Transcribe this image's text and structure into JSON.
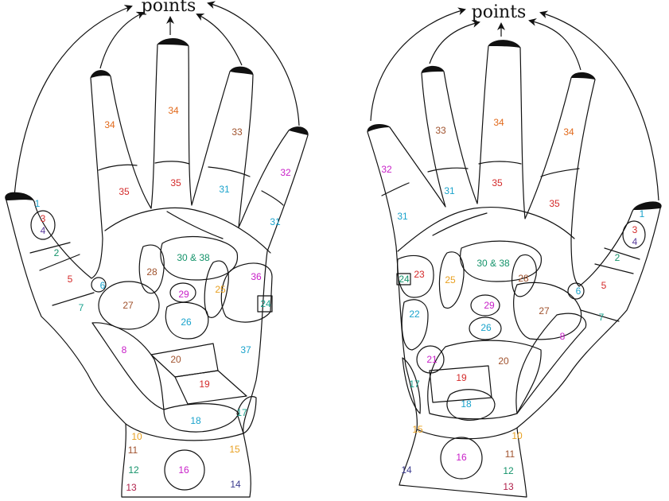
{
  "title_left": "points",
  "title_right": "points",
  "colors": {
    "orange": "#e26a1c",
    "red": "#d42a2a",
    "blue": "#1aa3cc",
    "magenta": "#c81fc8",
    "green": "#14936a",
    "purple": "#5a3b9c",
    "brown": "#a0522d",
    "navy": "#3b3b8f",
    "darkred": "#b0204a",
    "gold": "#e8a020",
    "teal": "#1aa38f"
  },
  "left_hand": [
    {
      "text": "1",
      "color": "blue"
    },
    {
      "text": "3",
      "color": "red"
    },
    {
      "text": "4",
      "color": "purple"
    },
    {
      "text": "2",
      "color": "green"
    },
    {
      "text": "5",
      "color": "red"
    },
    {
      "text": "6",
      "color": "blue"
    },
    {
      "text": "7",
      "color": "teal"
    },
    {
      "text": "8",
      "color": "magenta"
    },
    {
      "text": "34",
      "color": "orange"
    },
    {
      "text": "34",
      "color": "orange"
    },
    {
      "text": "33",
      "color": "brown"
    },
    {
      "text": "32",
      "color": "magenta"
    },
    {
      "text": "35",
      "color": "red"
    },
    {
      "text": "35",
      "color": "red"
    },
    {
      "text": "31",
      "color": "blue"
    },
    {
      "text": "31",
      "color": "blue"
    },
    {
      "text": "30 & 38",
      "color": "green"
    },
    {
      "text": "28",
      "color": "brown"
    },
    {
      "text": "29",
      "color": "magenta"
    },
    {
      "text": "25",
      "color": "gold"
    },
    {
      "text": "36",
      "color": "magenta"
    },
    {
      "text": "24",
      "color": "teal"
    },
    {
      "text": "27",
      "color": "brown"
    },
    {
      "text": "26",
      "color": "blue"
    },
    {
      "text": "37",
      "color": "blue"
    },
    {
      "text": "20",
      "color": "brown"
    },
    {
      "text": "19",
      "color": "red"
    },
    {
      "text": "18",
      "color": "blue"
    },
    {
      "text": "17",
      "color": "teal"
    },
    {
      "text": "10",
      "color": "gold"
    },
    {
      "text": "11",
      "color": "brown"
    },
    {
      "text": "12",
      "color": "green"
    },
    {
      "text": "13",
      "color": "darkred"
    },
    {
      "text": "15",
      "color": "gold"
    },
    {
      "text": "14",
      "color": "navy"
    },
    {
      "text": "16",
      "color": "magenta"
    }
  ],
  "right_hand": [
    {
      "text": "32",
      "color": "magenta"
    },
    {
      "text": "33",
      "color": "brown"
    },
    {
      "text": "34",
      "color": "orange"
    },
    {
      "text": "34",
      "color": "orange"
    },
    {
      "text": "31",
      "color": "blue"
    },
    {
      "text": "35",
      "color": "red"
    },
    {
      "text": "31",
      "color": "blue"
    },
    {
      "text": "35",
      "color": "red"
    },
    {
      "text": "1",
      "color": "blue"
    },
    {
      "text": "3",
      "color": "red"
    },
    {
      "text": "4",
      "color": "purple"
    },
    {
      "text": "2",
      "color": "green"
    },
    {
      "text": "5",
      "color": "red"
    },
    {
      "text": "6",
      "color": "blue"
    },
    {
      "text": "7",
      "color": "teal"
    },
    {
      "text": "8",
      "color": "magenta"
    },
    {
      "text": "30 & 38",
      "color": "green"
    },
    {
      "text": "28",
      "color": "brown"
    },
    {
      "text": "24",
      "color": "green"
    },
    {
      "text": "23",
      "color": "red"
    },
    {
      "text": "25",
      "color": "gold"
    },
    {
      "text": "29",
      "color": "magenta"
    },
    {
      "text": "27",
      "color": "brown"
    },
    {
      "text": "26",
      "color": "blue"
    },
    {
      "text": "22",
      "color": "blue"
    },
    {
      "text": "21",
      "color": "magenta"
    },
    {
      "text": "20",
      "color": "brown"
    },
    {
      "text": "19",
      "color": "red"
    },
    {
      "text": "18",
      "color": "blue"
    },
    {
      "text": "17",
      "color": "teal"
    },
    {
      "text": "15",
      "color": "gold"
    },
    {
      "text": "14",
      "color": "navy"
    },
    {
      "text": "16",
      "color": "magenta"
    },
    {
      "text": "10",
      "color": "gold"
    },
    {
      "text": "11",
      "color": "brown"
    },
    {
      "text": "12",
      "color": "green"
    },
    {
      "text": "13",
      "color": "darkred"
    }
  ]
}
